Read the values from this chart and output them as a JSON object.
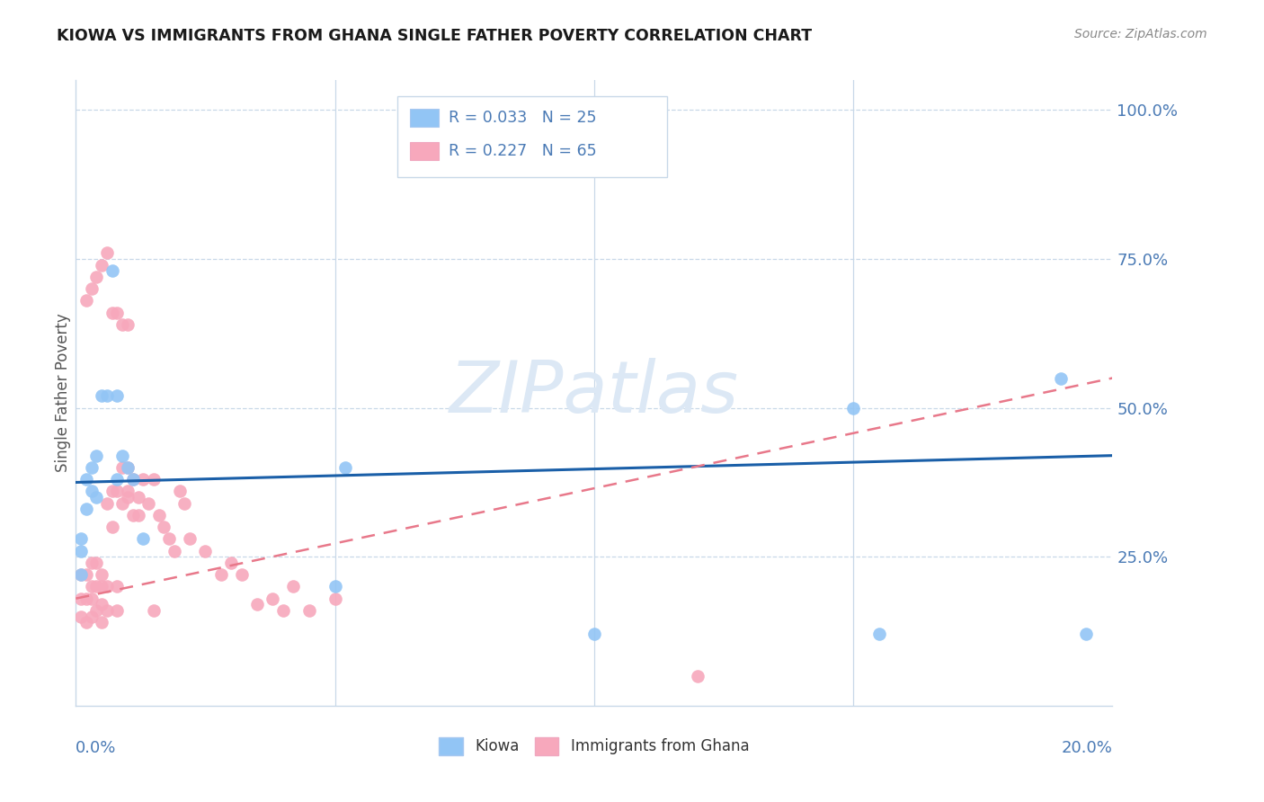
{
  "title": "KIOWA VS IMMIGRANTS FROM GHANA SINGLE FATHER POVERTY CORRELATION CHART",
  "source": "Source: ZipAtlas.com",
  "ylabel": "Single Father Poverty",
  "xlim": [
    0.0,
    0.2
  ],
  "ylim": [
    0.0,
    1.05
  ],
  "yticks": [
    0.0,
    0.25,
    0.5,
    0.75,
    1.0
  ],
  "ytick_labels": [
    "",
    "25.0%",
    "50.0%",
    "75.0%",
    "100.0%"
  ],
  "kiowa_color": "#92c5f5",
  "ghana_color": "#f7a8bc",
  "trend_kiowa_color": "#1a5fa8",
  "trend_ghana_color": "#e8788a",
  "grid_color": "#c8d8e8",
  "axis_label_color": "#4a7ab5",
  "title_color": "#1a1a1a",
  "source_color": "#888888",
  "watermark": "ZIPatlas",
  "watermark_color": "#dce8f5",
  "legend_r1": "R = 0.033",
  "legend_n1": "N = 25",
  "legend_r2": "R = 0.227",
  "legend_n2": "N = 65",
  "kiowa_x": [
    0.001,
    0.001,
    0.001,
    0.002,
    0.002,
    0.003,
    0.003,
    0.004,
    0.004,
    0.005,
    0.006,
    0.007,
    0.008,
    0.008,
    0.009,
    0.01,
    0.011,
    0.013,
    0.05,
    0.052,
    0.1,
    0.15,
    0.155,
    0.19,
    0.195
  ],
  "kiowa_y": [
    0.22,
    0.26,
    0.28,
    0.33,
    0.38,
    0.36,
    0.4,
    0.35,
    0.42,
    0.52,
    0.52,
    0.73,
    0.52,
    0.38,
    0.42,
    0.4,
    0.38,
    0.28,
    0.2,
    0.4,
    0.12,
    0.5,
    0.12,
    0.55,
    0.12
  ],
  "ghana_x": [
    0.001,
    0.001,
    0.001,
    0.002,
    0.002,
    0.002,
    0.003,
    0.003,
    0.003,
    0.003,
    0.004,
    0.004,
    0.004,
    0.005,
    0.005,
    0.005,
    0.005,
    0.006,
    0.006,
    0.006,
    0.007,
    0.007,
    0.008,
    0.008,
    0.008,
    0.009,
    0.009,
    0.01,
    0.01,
    0.01,
    0.011,
    0.011,
    0.012,
    0.012,
    0.013,
    0.014,
    0.015,
    0.016,
    0.017,
    0.018,
    0.019,
    0.02,
    0.021,
    0.022,
    0.025,
    0.028,
    0.03,
    0.032,
    0.035,
    0.038,
    0.04,
    0.042,
    0.045,
    0.05,
    0.002,
    0.003,
    0.004,
    0.005,
    0.006,
    0.007,
    0.008,
    0.009,
    0.01,
    0.015,
    0.12
  ],
  "ghana_y": [
    0.15,
    0.18,
    0.22,
    0.14,
    0.18,
    0.22,
    0.15,
    0.18,
    0.2,
    0.24,
    0.16,
    0.2,
    0.24,
    0.14,
    0.17,
    0.2,
    0.22,
    0.16,
    0.2,
    0.34,
    0.3,
    0.36,
    0.16,
    0.2,
    0.36,
    0.34,
    0.4,
    0.35,
    0.36,
    0.4,
    0.32,
    0.38,
    0.32,
    0.35,
    0.38,
    0.34,
    0.38,
    0.32,
    0.3,
    0.28,
    0.26,
    0.36,
    0.34,
    0.28,
    0.26,
    0.22,
    0.24,
    0.22,
    0.17,
    0.18,
    0.16,
    0.2,
    0.16,
    0.18,
    0.68,
    0.7,
    0.72,
    0.74,
    0.76,
    0.66,
    0.66,
    0.64,
    0.64,
    0.16,
    0.05
  ],
  "kiowa_trend_x": [
    0.0,
    0.2
  ],
  "kiowa_trend_y": [
    0.375,
    0.42
  ],
  "ghana_trend_x": [
    0.0,
    0.2
  ],
  "ghana_trend_y": [
    0.18,
    0.55
  ]
}
